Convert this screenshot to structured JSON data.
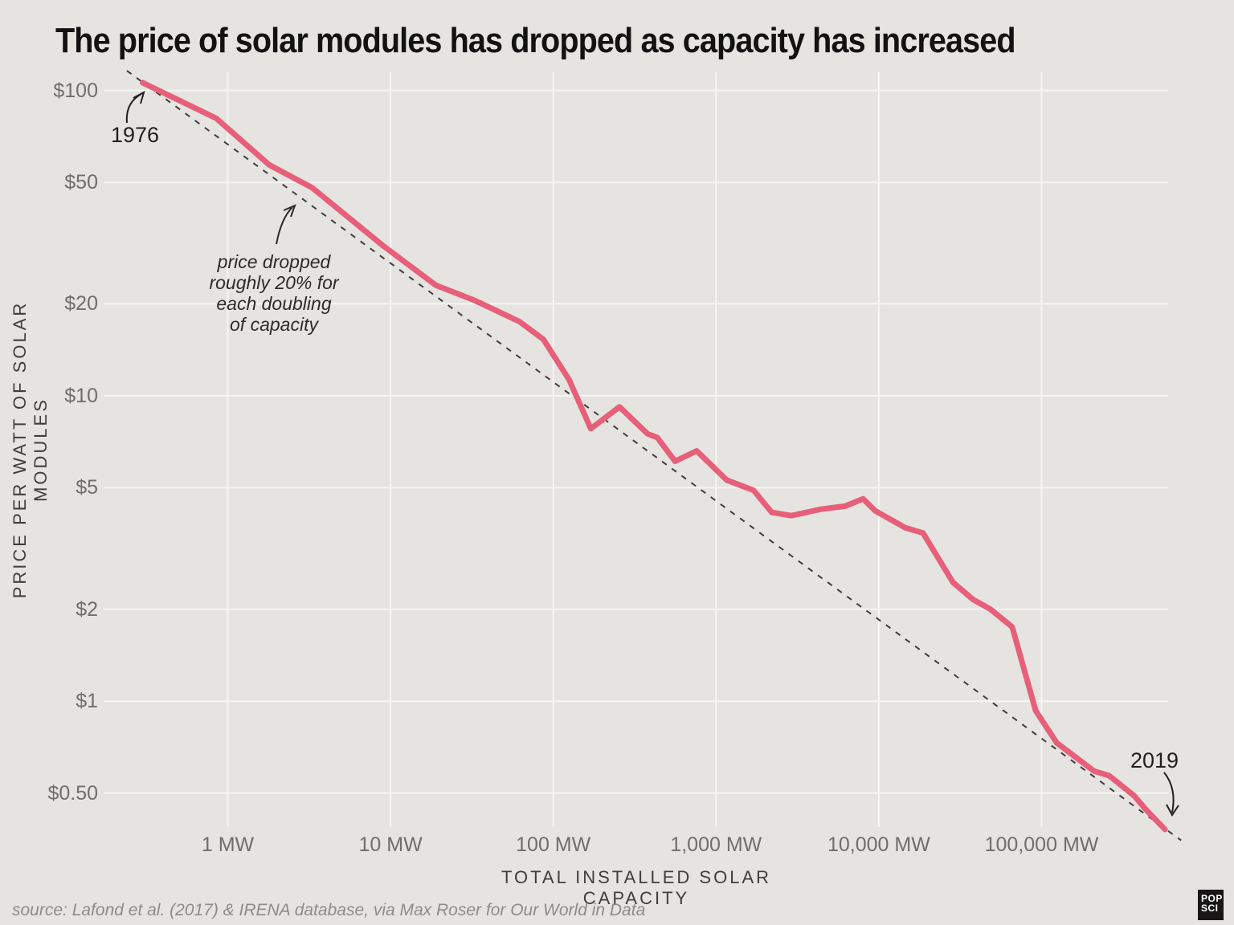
{
  "title": "The price of solar modules has dropped as capacity has increased",
  "source": "source: Lafond et al. (2017) & IRENA database, via Max Roser for Our World in Data",
  "logo": {
    "line1": "POP",
    "line2": "SCI"
  },
  "colors": {
    "background": "#e5e4e1",
    "gridline": "#f6f5f2",
    "price_line": "#e75f78",
    "trend_line": "#3d3d3b",
    "tick_label": "#6f6e6c",
    "axis_label": "#3f3e3c",
    "title": "#121212",
    "source_text": "#8d8c8a",
    "annotation": "#2b2b2b"
  },
  "annotations": {
    "start_year": "1976",
    "end_year": "2019",
    "trend_note_lines": [
      "price dropped",
      "roughly 20% for",
      "each doubling",
      "of capacity"
    ]
  },
  "chart_data": {
    "type": "line",
    "title": "The price of solar modules has dropped as capacity has increased",
    "xlabel": "TOTAL INSTALLED SOLAR CAPACITY",
    "ylabel": "PRICE PER WATT OF SOLAR MODULES",
    "x_scale": "log",
    "y_scale": "log",
    "x_range_mw": [
      0.17,
      600000
    ],
    "y_range_usd_per_watt": [
      0.37,
      116
    ],
    "grid": true,
    "legend": "none",
    "x_ticks": [
      {
        "value": 1,
        "label": "1 MW"
      },
      {
        "value": 10,
        "label": "10 MW"
      },
      {
        "value": 100,
        "label": "100 MW"
      },
      {
        "value": 1000,
        "label": "1,000 MW"
      },
      {
        "value": 10000,
        "label": "10,000 MW"
      },
      {
        "value": 100000,
        "label": "100,000 MW"
      }
    ],
    "y_ticks": [
      {
        "value": 100,
        "label": "$100"
      },
      {
        "value": 50,
        "label": "$50"
      },
      {
        "value": 20,
        "label": "$20"
      },
      {
        "value": 10,
        "label": "$10"
      },
      {
        "value": 5,
        "label": "$5"
      },
      {
        "value": 2,
        "label": "$2"
      },
      {
        "value": 1,
        "label": "$1"
      },
      {
        "value": 0.5,
        "label": "$0.50"
      }
    ],
    "series": [
      {
        "name": "Price per watt of solar modules (1976-2019)",
        "color": "#e75f78",
        "first_point_year": 1976,
        "last_point_year": 2019,
        "points_capacity_mw_vs_usd_per_watt": [
          [
            0.3,
            106
          ],
          [
            0.85,
            81
          ],
          [
            1.8,
            57
          ],
          [
            3.3,
            48
          ],
          [
            9,
            31
          ],
          [
            19,
            23
          ],
          [
            33,
            20.5
          ],
          [
            62,
            17.5
          ],
          [
            87,
            15.3
          ],
          [
            125,
            11.3
          ],
          [
            170,
            7.8
          ],
          [
            255,
            9.2
          ],
          [
            380,
            7.5
          ],
          [
            435,
            7.3
          ],
          [
            560,
            6.1
          ],
          [
            760,
            6.6
          ],
          [
            1160,
            5.3
          ],
          [
            1700,
            4.9
          ],
          [
            2200,
            4.15
          ],
          [
            2900,
            4.05
          ],
          [
            4400,
            4.25
          ],
          [
            6200,
            4.35
          ],
          [
            8000,
            4.6
          ],
          [
            9500,
            4.2
          ],
          [
            14500,
            3.7
          ],
          [
            18700,
            3.55
          ],
          [
            28500,
            2.45
          ],
          [
            38000,
            2.15
          ],
          [
            48500,
            2.0
          ],
          [
            66000,
            1.75
          ],
          [
            92000,
            0.93
          ],
          [
            124000,
            0.73
          ],
          [
            210000,
            0.59
          ],
          [
            260000,
            0.57
          ],
          [
            370000,
            0.49
          ],
          [
            440000,
            0.44
          ],
          [
            573000,
            0.38
          ]
        ]
      }
    ],
    "trend_line": {
      "style": "dashed",
      "note": "price dropped roughly 20% for each doubling of capacity",
      "points_capacity_mw_vs_usd_per_watt": [
        [
          0.24,
          116
        ],
        [
          720000,
          0.35
        ]
      ]
    }
  }
}
